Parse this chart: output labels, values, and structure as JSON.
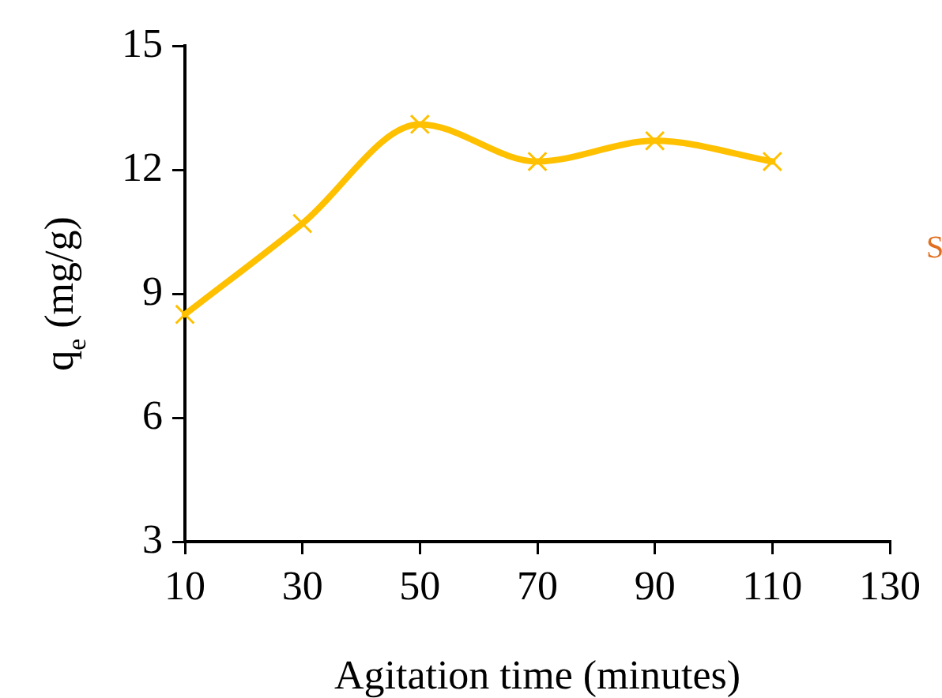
{
  "chart_data": {
    "type": "line",
    "xlabel": "Agitation time (minutes)",
    "ylabel": "q$_{e}$ (mg/g)",
    "x": [
      10,
      30,
      50,
      70,
      90,
      110
    ],
    "series": [
      {
        "color": "#ffc000",
        "values": [
          8.5,
          10.7,
          13.1,
          12.2,
          12.7,
          12.2
        ]
      }
    ],
    "xlim": [
      10,
      130
    ],
    "xticks": [
      10,
      30,
      50,
      70,
      90,
      110,
      130
    ],
    "ylim": [
      3,
      15
    ],
    "yticks": [
      3,
      6,
      9,
      12,
      15
    ],
    "grid": false,
    "legend": false,
    "marker": "cross",
    "line_style": "solid",
    "annotations": [
      "S"
    ]
  }
}
